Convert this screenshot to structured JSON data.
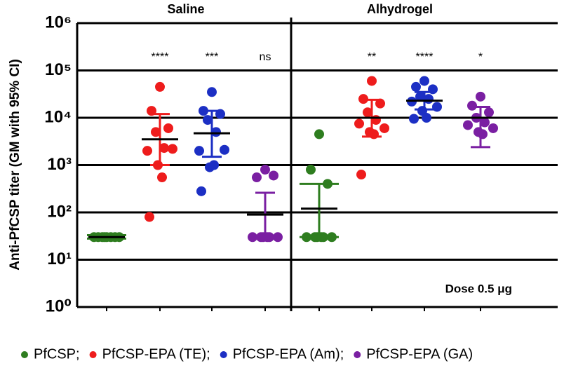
{
  "chart_data": {
    "type": "dot",
    "ylabel": "Anti-PfCSP titer (GM with 95% CI)",
    "yscale": "log",
    "ylim": [
      1,
      1000000
    ],
    "yticks": [
      {
        "value": 1,
        "label": "10⁰"
      },
      {
        "value": 10,
        "label": "10¹"
      },
      {
        "value": 100,
        "label": "10²"
      },
      {
        "value": 1000,
        "label": "10³"
      },
      {
        "value": 10000,
        "label": "10⁴"
      },
      {
        "value": 100000,
        "label": "10⁵"
      },
      {
        "value": 1000000,
        "label": "10⁶"
      }
    ],
    "grid": true,
    "annotation": "Dose 0.5 μg",
    "legend_separator": ";",
    "legend_position": "bottom",
    "series": [
      {
        "name": "PfCSP",
        "color": "#2e7d1f"
      },
      {
        "name": "PfCSP-EPA (TE)",
        "color": "#ee1c1c"
      },
      {
        "name": "PfCSP-EPA (Am)",
        "color": "#1c2fc4"
      },
      {
        "name": "PfCSP-EPA (GA)",
        "color": "#7a1fa2"
      }
    ],
    "panels": [
      {
        "title": "Saline",
        "groups": [
          {
            "values": [
              30,
              30,
              30,
              30,
              30,
              30,
              30,
              30
            ],
            "gm": 30,
            "ci_low": 28,
            "ci_high": 33
          },
          {
            "values": [
              45000,
              14000,
              6000,
              5000,
              2300,
              2000,
              2200,
              1000,
              550,
              80
            ],
            "gm": 3500,
            "ci_low": 1000,
            "ci_high": 12000,
            "label": "****"
          },
          {
            "values": [
              35000,
              14000,
              12000,
              9000,
              5000,
              2000,
              2100,
              900,
              1000,
              280
            ],
            "gm": 4700,
            "ci_low": 1500,
            "ci_high": 14000,
            "label": "***"
          },
          {
            "values": [
              800,
              550,
              600,
              30,
              30,
              30,
              30,
              30,
              30
            ],
            "gm": 90,
            "ci_low": 30,
            "ci_high": 260,
            "label": "ns"
          }
        ]
      },
      {
        "title": "Alhydrogel",
        "groups": [
          {
            "values": [
              4500,
              800,
              400,
              30,
              30,
              30,
              30,
              30,
              30
            ],
            "gm": 120,
            "ci_low": 30,
            "ci_high": 400
          },
          {
            "values": [
              60000,
              25000,
              20000,
              13000,
              9000,
              7500,
              6000,
              5000,
              4500,
              630
            ],
            "gm": 10000,
            "ci_low": 4000,
            "ci_high": 24000,
            "label": "**"
          },
          {
            "values": [
              60000,
              45000,
              40000,
              28000,
              25000,
              22000,
              17000,
              14000,
              10000,
              9500
            ],
            "gm": 23000,
            "ci_low": 15000,
            "ci_high": 35000,
            "label": "****"
          },
          {
            "values": [
              28000,
              18000,
              13000,
              10000,
              8000,
              7000,
              6000,
              5000,
              4500
            ],
            "gm": 10000,
            "ci_low": 2400,
            "ci_high": 17000,
            "label": "*"
          }
        ]
      }
    ]
  }
}
